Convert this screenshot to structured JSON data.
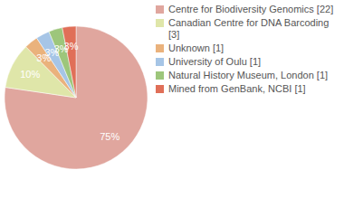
{
  "chart_data": {
    "type": "pie",
    "categories": [
      "Centre for Biodiversity Genomics [22]",
      "Canadian Centre for DNA Barcoding [3]",
      "Unknown [1]",
      "University of Oulu [1]",
      "Natural History Museum, London [1]",
      "Mined from GenBank, NCBI [1]"
    ],
    "values": [
      75,
      10,
      3,
      3,
      3,
      3
    ],
    "value_labels": [
      "75%",
      "10%",
      "3%",
      "3%",
      "3%",
      "3%"
    ],
    "colors": [
      "#e0a69e",
      "#dfe6a9",
      "#eab27c",
      "#a6c5e6",
      "#9dc67b",
      "#e06f58"
    ],
    "data_labels": true,
    "legend": "right"
  }
}
